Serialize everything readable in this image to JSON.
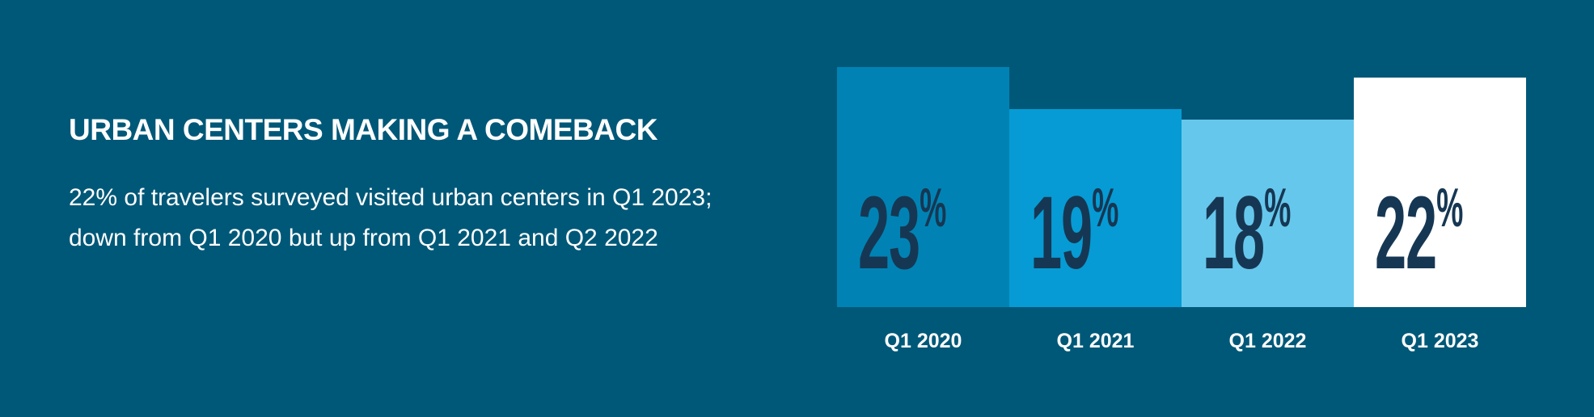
{
  "title": "URBAN CENTERS MAKING A COMEBACK",
  "body": "22% of travelers surveyed visited urban centers in Q1 2023; down from Q1 2020 but up from Q1 2021 and Q2 2022",
  "background_color": "#005878",
  "chart_data": {
    "type": "bar",
    "categories": [
      "Q1 2020",
      "Q1 2021",
      "Q1 2022",
      "Q1 2023"
    ],
    "values": [
      23,
      19,
      18,
      22
    ],
    "data_labels": [
      "23",
      "19",
      "18",
      "22"
    ],
    "unit": "%",
    "colors": [
      "#0083b4",
      "#069bd4",
      "#66c7ec",
      "#ffffff"
    ],
    "label_color": "#163753",
    "ylim": [
      0,
      23
    ],
    "grid": false,
    "axes_visible": false
  }
}
